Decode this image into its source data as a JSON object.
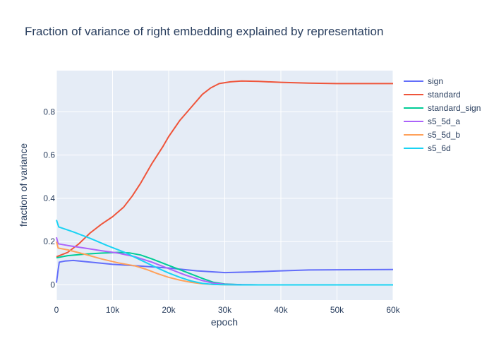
{
  "chart_data": {
    "type": "line",
    "title": "Fraction of variance of right embedding explained by representation",
    "xlabel": "epoch",
    "ylabel": "fraction of variance",
    "xlim": [
      0,
      60000
    ],
    "ylim": [
      -0.07,
      0.99
    ],
    "x_ticks": [
      {
        "value": 0,
        "label": "0"
      },
      {
        "value": 10000,
        "label": "10k"
      },
      {
        "value": 20000,
        "label": "20k"
      },
      {
        "value": 30000,
        "label": "30k"
      },
      {
        "value": 40000,
        "label": "40k"
      },
      {
        "value": 50000,
        "label": "50k"
      },
      {
        "value": 60000,
        "label": "60k"
      }
    ],
    "y_ticks": [
      {
        "value": 0,
        "label": "0"
      },
      {
        "value": 0.2,
        "label": "0.2"
      },
      {
        "value": 0.4,
        "label": "0.4"
      },
      {
        "value": 0.6,
        "label": "0.6"
      },
      {
        "value": 0.8,
        "label": "0.8"
      }
    ],
    "grid": true,
    "legend_position": "right",
    "series": [
      {
        "name": "sign",
        "color": "#636efa",
        "points": [
          [
            0,
            0.01
          ],
          [
            300,
            0.07
          ],
          [
            500,
            0.105
          ],
          [
            1500,
            0.11
          ],
          [
            3000,
            0.113
          ],
          [
            6000,
            0.105
          ],
          [
            10000,
            0.095
          ],
          [
            15000,
            0.087
          ],
          [
            20000,
            0.078
          ],
          [
            25000,
            0.065
          ],
          [
            30000,
            0.057
          ],
          [
            35000,
            0.06
          ],
          [
            40000,
            0.065
          ],
          [
            45000,
            0.069
          ],
          [
            50000,
            0.07
          ],
          [
            60000,
            0.071
          ]
        ]
      },
      {
        "name": "standard",
        "color": "#ef553b",
        "points": [
          [
            0,
            0.13
          ],
          [
            2000,
            0.15
          ],
          [
            4000,
            0.19
          ],
          [
            6000,
            0.24
          ],
          [
            8000,
            0.28
          ],
          [
            10000,
            0.315
          ],
          [
            12000,
            0.36
          ],
          [
            13500,
            0.41
          ],
          [
            15000,
            0.47
          ],
          [
            17000,
            0.56
          ],
          [
            19000,
            0.64
          ],
          [
            20000,
            0.685
          ],
          [
            22000,
            0.76
          ],
          [
            24000,
            0.82
          ],
          [
            26000,
            0.88
          ],
          [
            27500,
            0.91
          ],
          [
            29000,
            0.93
          ],
          [
            31000,
            0.938
          ],
          [
            33000,
            0.942
          ],
          [
            36000,
            0.94
          ],
          [
            40000,
            0.936
          ],
          [
            45000,
            0.932
          ],
          [
            50000,
            0.93
          ],
          [
            55000,
            0.93
          ],
          [
            60000,
            0.93
          ]
        ]
      },
      {
        "name": "standard_sign",
        "color": "#00cc96",
        "points": [
          [
            0,
            0.125
          ],
          [
            2000,
            0.135
          ],
          [
            5000,
            0.142
          ],
          [
            8000,
            0.147
          ],
          [
            11000,
            0.15
          ],
          [
            13000,
            0.148
          ],
          [
            15000,
            0.138
          ],
          [
            17000,
            0.12
          ],
          [
            20000,
            0.09
          ],
          [
            23000,
            0.06
          ],
          [
            26000,
            0.03
          ],
          [
            28000,
            0.012
          ],
          [
            30000,
            0.004
          ],
          [
            33000,
            0.001
          ],
          [
            36000,
            0
          ],
          [
            60000,
            0
          ]
        ]
      },
      {
        "name": "s5_5d_a",
        "color": "#ab63fa",
        "points": [
          [
            0,
            0.22
          ],
          [
            300,
            0.19
          ],
          [
            2000,
            0.182
          ],
          [
            5000,
            0.17
          ],
          [
            8000,
            0.158
          ],
          [
            11000,
            0.147
          ],
          [
            14000,
            0.13
          ],
          [
            17000,
            0.105
          ],
          [
            20000,
            0.075
          ],
          [
            23000,
            0.045
          ],
          [
            26000,
            0.02
          ],
          [
            28000,
            0.008
          ],
          [
            30000,
            0.003
          ],
          [
            33000,
            0.001
          ],
          [
            36000,
            0
          ],
          [
            60000,
            0
          ]
        ]
      },
      {
        "name": "s5_5d_b",
        "color": "#ffa15a",
        "points": [
          [
            0,
            0.2
          ],
          [
            300,
            0.17
          ],
          [
            2000,
            0.162
          ],
          [
            5000,
            0.142
          ],
          [
            8000,
            0.12
          ],
          [
            11000,
            0.102
          ],
          [
            14000,
            0.088
          ],
          [
            16000,
            0.072
          ],
          [
            18000,
            0.052
          ],
          [
            20000,
            0.035
          ],
          [
            22000,
            0.022
          ],
          [
            24000,
            0.012
          ],
          [
            26000,
            0.005
          ],
          [
            28000,
            0.002
          ],
          [
            30000,
            0.001
          ],
          [
            33000,
            0
          ],
          [
            60000,
            0
          ]
        ]
      },
      {
        "name": "s5_6d",
        "color": "#19d3f3",
        "points": [
          [
            0,
            0.3
          ],
          [
            400,
            0.268
          ],
          [
            3000,
            0.245
          ],
          [
            6000,
            0.215
          ],
          [
            9000,
            0.182
          ],
          [
            12000,
            0.152
          ],
          [
            15000,
            0.115
          ],
          [
            18000,
            0.078
          ],
          [
            20000,
            0.055
          ],
          [
            22000,
            0.035
          ],
          [
            24000,
            0.018
          ],
          [
            26000,
            0.007
          ],
          [
            28000,
            0.002
          ],
          [
            30000,
            0.001
          ],
          [
            33000,
            0
          ],
          [
            60000,
            0
          ]
        ]
      }
    ]
  }
}
